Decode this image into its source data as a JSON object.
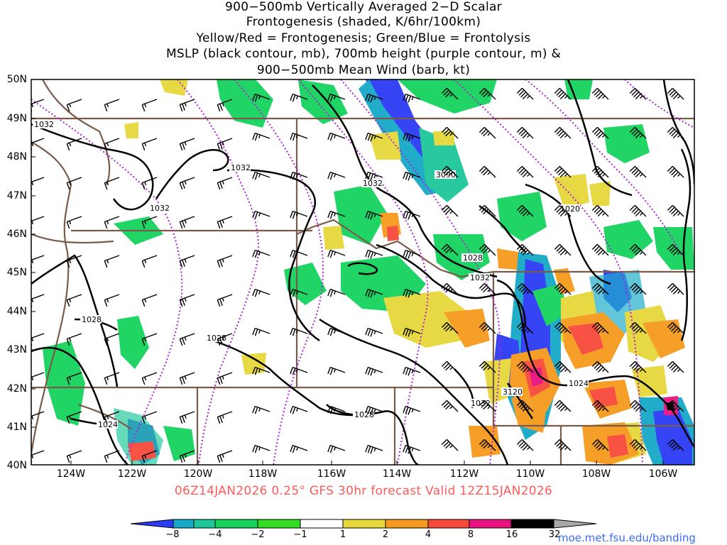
{
  "title": {
    "line1": "900−500mb Vertically Averaged 2−D Scalar",
    "line2": "Frontogenesis (shaded, K/6hr/100km)",
    "line3": "Yellow/Red = Frontogenesis;  Green/Blue = Frontolysis",
    "line4": "MSLP (black contour, mb), 700mb height (purple contour, m) &",
    "line5": "900−500mb Mean Wind (barb, kt)"
  },
  "axes": {
    "lat_labels": [
      "50N",
      "49N",
      "48N",
      "47N",
      "46N",
      "45N",
      "44N",
      "43N",
      "42N",
      "41N",
      "40N"
    ],
    "lon_labels": [
      "124W",
      "122W",
      "120W",
      "118W",
      "116W",
      "114W",
      "112W",
      "110W",
      "108W",
      "106W"
    ]
  },
  "contour_labels": {
    "mslp": [
      "1032",
      "1032",
      "1032",
      "1032",
      "1028",
      "1032",
      "1028",
      "1028",
      "1024",
      "1028",
      "1024",
      "1032",
      "1020"
    ],
    "height": [
      "3090",
      "3120"
    ]
  },
  "footer": "06Z14JAN2026 0.25° GFS 30hr forecast Valid 12Z15JAN2026",
  "credit": "moe.met.fsu.edu/banding",
  "colorbar": {
    "labels": [
      "−8",
      "−4",
      "−2",
      "−1",
      "1",
      "2",
      "4",
      "8",
      "16",
      "32"
    ],
    "colors": [
      "#2b3cf5",
      "#16a8c8",
      "#1dc79a",
      "#15d35d",
      "#33dd22",
      "#ffffff",
      "#e6d73a",
      "#f59a1e",
      "#f7493a",
      "#e8137e",
      "#000000",
      "#a8a8a8"
    ]
  },
  "colors": {
    "mslp_contour": "#000000",
    "height_contour": "#b020d8",
    "borders": "#7a5a48",
    "barbs": "#000000"
  }
}
